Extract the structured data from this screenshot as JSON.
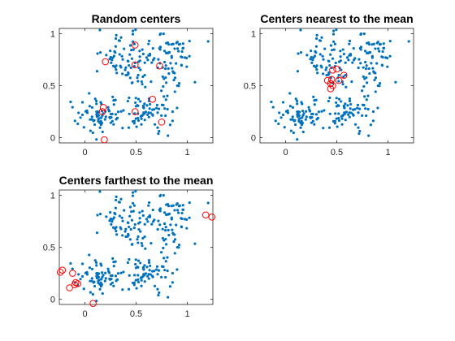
{
  "chart_data": [
    {
      "type": "scatter",
      "title": "Random centers",
      "xlabel": "",
      "ylabel": "",
      "xlim": [
        -0.25,
        1.25
      ],
      "ylim": [
        -0.05,
        1.05
      ],
      "xticks": [
        0,
        0.5,
        1
      ],
      "xtick_labels": [
        "0",
        "0.5",
        "1"
      ],
      "yticks": [
        0,
        0.5,
        1
      ],
      "ytick_labels": [
        "0",
        "0.5",
        "1"
      ],
      "grid": false,
      "point_color": "#0072BD",
      "center_color": "#FF0000",
      "centers": [
        {
          "x": 0.49,
          "y": 0.89
        },
        {
          "x": 0.2,
          "y": 0.73
        },
        {
          "x": 0.49,
          "y": 0.7
        },
        {
          "x": 0.73,
          "y": 0.69
        },
        {
          "x": 0.66,
          "y": 0.37
        },
        {
          "x": 0.18,
          "y": 0.29
        },
        {
          "x": 0.17,
          "y": 0.25
        },
        {
          "x": 0.49,
          "y": 0.25
        },
        {
          "x": 0.75,
          "y": 0.15
        },
        {
          "x": 0.19,
          "y": -0.02
        }
      ]
    },
    {
      "type": "scatter",
      "title": "Centers nearest to the mean",
      "xlabel": "",
      "ylabel": "",
      "xlim": [
        -0.25,
        1.25
      ],
      "ylim": [
        -0.05,
        1.05
      ],
      "xticks": [
        0,
        0.5,
        1
      ],
      "xtick_labels": [
        "0",
        "0.5",
        "1"
      ],
      "yticks": [
        0,
        0.5,
        1
      ],
      "ytick_labels": [
        "0",
        "0.5",
        "1"
      ],
      "grid": false,
      "point_color": "#0072BD",
      "center_color": "#FF0000",
      "centers": [
        {
          "x": 0.46,
          "y": 0.65
        },
        {
          "x": 0.5,
          "y": 0.66
        },
        {
          "x": 0.57,
          "y": 0.6
        },
        {
          "x": 0.41,
          "y": 0.55
        },
        {
          "x": 0.45,
          "y": 0.56
        },
        {
          "x": 0.52,
          "y": 0.55
        },
        {
          "x": 0.44,
          "y": 0.52
        },
        {
          "x": 0.46,
          "y": 0.5
        },
        {
          "x": 0.44,
          "y": 0.47
        }
      ]
    },
    {
      "type": "scatter",
      "title": "Centers farthest to the mean",
      "xlabel": "",
      "ylabel": "",
      "xlim": [
        -0.25,
        1.25
      ],
      "ylim": [
        -0.05,
        1.05
      ],
      "xticks": [
        0,
        0.5,
        1
      ],
      "xtick_labels": [
        "0",
        "0.5",
        "1"
      ],
      "yticks": [
        0,
        0.5,
        1
      ],
      "ytick_labels": [
        "0",
        "0.5",
        "1"
      ],
      "grid": false,
      "point_color": "#0072BD",
      "center_color": "#FF0000",
      "centers": [
        {
          "x": 1.18,
          "y": 0.81
        },
        {
          "x": 1.24,
          "y": 0.79
        },
        {
          "x": -0.22,
          "y": 0.28
        },
        {
          "x": -0.24,
          "y": 0.26
        },
        {
          "x": -0.12,
          "y": 0.25
        },
        {
          "x": -0.09,
          "y": 0.16
        },
        {
          "x": -0.07,
          "y": 0.15
        },
        {
          "x": -0.1,
          "y": 0.14
        },
        {
          "x": -0.15,
          "y": 0.11
        },
        {
          "x": 0.08,
          "y": -0.04
        }
      ]
    }
  ]
}
